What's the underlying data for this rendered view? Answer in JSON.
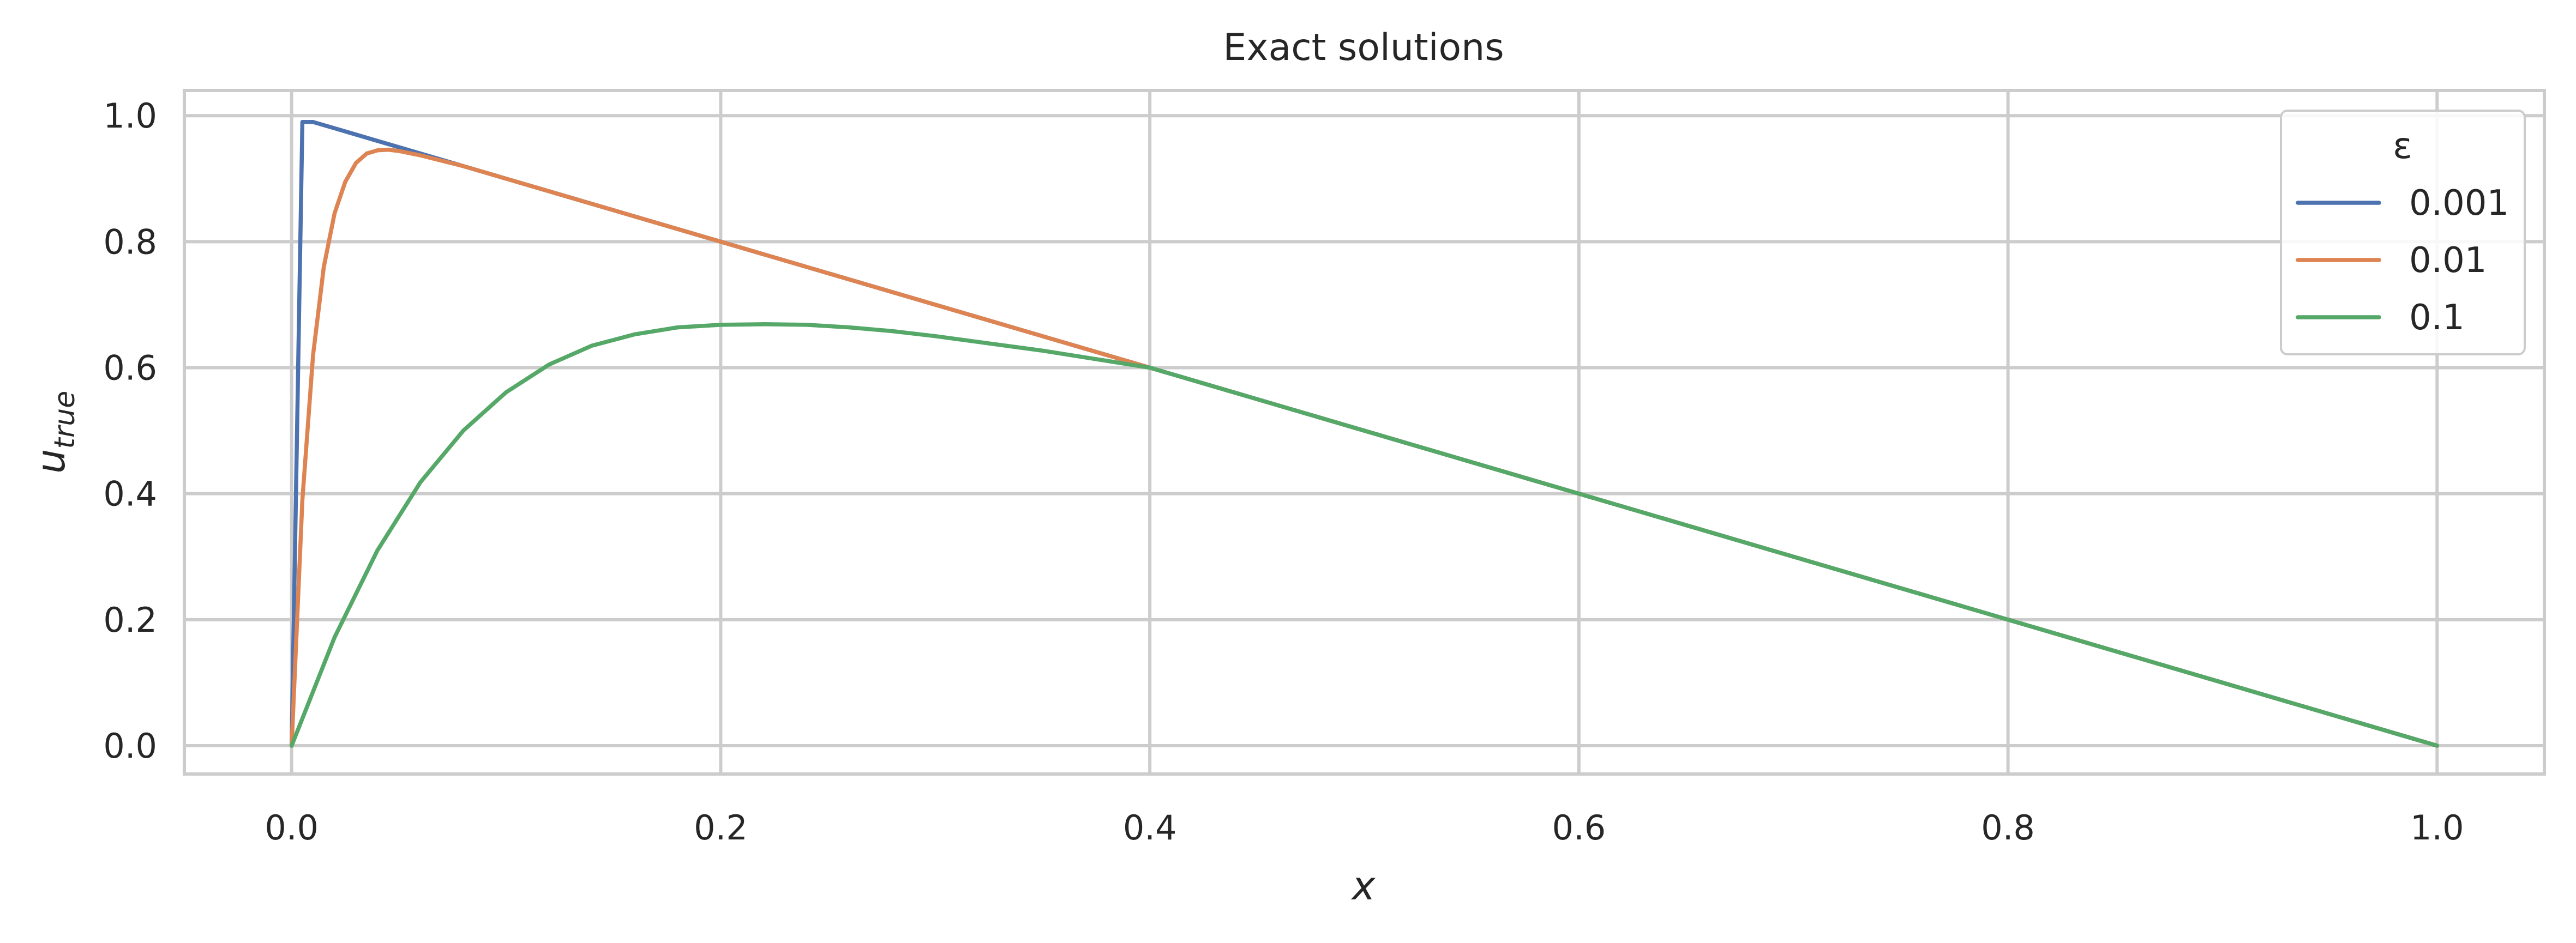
{
  "chart_data": {
    "type": "line",
    "title": "Exact solutions",
    "xlabel": "x",
    "ylabel_main": "u",
    "ylabel_sub": "true",
    "xlim": [
      -0.05,
      1.05
    ],
    "ylim": [
      -0.045,
      1.04
    ],
    "xticks": [
      0.0,
      0.2,
      0.4,
      0.6,
      0.8,
      1.0
    ],
    "xtick_labels": [
      "0.0",
      "0.2",
      "0.4",
      "0.6",
      "0.8",
      "1.0"
    ],
    "yticks": [
      0.0,
      0.2,
      0.4,
      0.6,
      0.8,
      1.0
    ],
    "ytick_labels": [
      "0.0",
      "0.2",
      "0.4",
      "0.6",
      "0.8",
      "1.0"
    ],
    "grid": true,
    "legend": {
      "title": "ε",
      "position": "top-right"
    },
    "series": [
      {
        "name": "0.001",
        "color": "#4c72b0",
        "x": [
          0.0,
          0.005,
          0.01,
          0.02,
          0.04,
          0.07,
          0.1,
          0.2,
          0.3,
          0.4,
          0.5,
          0.6,
          0.7,
          0.8,
          0.9,
          1.0
        ],
        "y": [
          0.0,
          0.99,
          0.99,
          0.98,
          0.96,
          0.93,
          0.9,
          0.8,
          0.7,
          0.6,
          0.5,
          0.4,
          0.3,
          0.2,
          0.1,
          0.0
        ]
      },
      {
        "name": "0.01",
        "color": "#dd8452",
        "x": [
          0.0,
          0.005,
          0.01,
          0.015,
          0.02,
          0.025,
          0.03,
          0.035,
          0.04,
          0.045,
          0.05,
          0.06,
          0.08,
          0.1,
          0.2,
          0.3,
          0.4,
          0.5,
          0.6,
          0.7,
          0.8,
          0.9,
          1.0
        ],
        "y": [
          0.0,
          0.39,
          0.62,
          0.76,
          0.845,
          0.895,
          0.925,
          0.94,
          0.945,
          0.946,
          0.944,
          0.937,
          0.92,
          0.9,
          0.8,
          0.7,
          0.6,
          0.5,
          0.4,
          0.3,
          0.2,
          0.1,
          0.0
        ]
      },
      {
        "name": "0.1",
        "color": "#55a868",
        "x": [
          0.0,
          0.02,
          0.04,
          0.06,
          0.08,
          0.1,
          0.12,
          0.14,
          0.16,
          0.18,
          0.2,
          0.22,
          0.24,
          0.26,
          0.28,
          0.3,
          0.35,
          0.4,
          0.45,
          0.5,
          0.55,
          0.6,
          0.65,
          0.7,
          0.75,
          0.8,
          0.85,
          0.9,
          0.95,
          1.0
        ],
        "y": [
          0.0,
          0.172,
          0.31,
          0.418,
          0.5,
          0.561,
          0.605,
          0.635,
          0.653,
          0.664,
          0.668,
          0.669,
          0.668,
          0.664,
          0.658,
          0.65,
          0.627,
          0.6,
          0.55,
          0.5,
          0.45,
          0.4,
          0.35,
          0.3,
          0.25,
          0.2,
          0.15,
          0.1,
          0.05,
          0.0
        ]
      }
    ]
  }
}
